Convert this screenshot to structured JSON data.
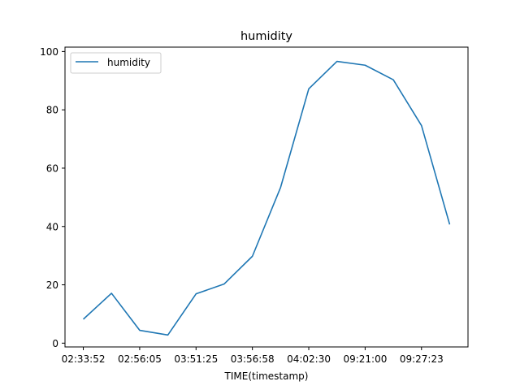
{
  "chart_data": {
    "type": "line",
    "title": "humidity",
    "xlabel": "TIME(timestamp)",
    "ylabel": "",
    "ylim": [
      -1.3,
      101.5
    ],
    "yticks": [
      0,
      20,
      40,
      60,
      80,
      100
    ],
    "x": [
      0,
      1,
      2,
      3,
      4,
      5,
      6,
      7,
      8,
      9,
      10,
      11,
      12,
      13
    ],
    "xticks": [
      0,
      2,
      4,
      6,
      8,
      10,
      12
    ],
    "xtick_labels": [
      "02:33:52",
      "02:56:05",
      "03:51:25",
      "03:56:58",
      "04:02:30",
      "09:21:00",
      "09:27:23"
    ],
    "grid": false,
    "legend": {
      "position": "top-left",
      "entries": [
        "humidity"
      ]
    },
    "series": [
      {
        "name": "humidity",
        "color": "#1f77b4",
        "values": [
          8.2,
          17.1,
          4.4,
          2.8,
          16.9,
          20.3,
          29.8,
          53.4,
          87.2,
          96.6,
          95.3,
          90.3,
          74.6,
          40.7
        ]
      }
    ]
  }
}
